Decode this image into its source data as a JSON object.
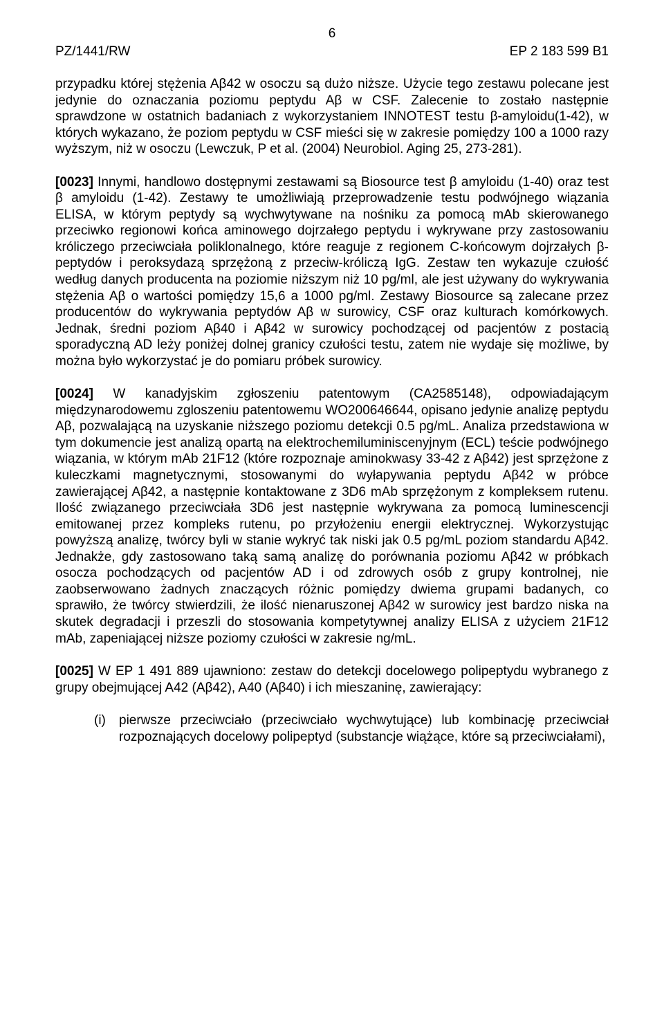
{
  "page_number": "6",
  "header_left": "PZ/1441/RW",
  "header_right": "EP 2 183 599 B1",
  "p1": "przypadku której stężenia Aβ42 w osoczu są dużo niższe. Użycie tego zestawu polecane jest jedynie do oznaczania poziomu peptydu Aβ w CSF. Zalecenie to zostało następnie sprawdzone w ostatnich badaniach z wykorzystaniem INNOTEST testu β-amyloidu(1-42), w których wykazano, że poziom peptydu w CSF mieści się w zakresie pomiędzy 100 a 1000 razy wyższym, niż w osoczu (Lewczuk, P et al. (2004) Neurobiol. Aging 25, 273-281).",
  "p2_label": "[0023]",
  "p2_body": " Innymi, handlowo dostępnymi zestawami są Biosource test β amyloidu (1-40) oraz test β amyloidu (1-42). Zestawy te umożliwiają przeprowadzenie testu podwójnego wiązania ELISA, w którym peptydy są wychwytywane na nośniku za pomocą mAb skierowanego przeciwko regionowi końca aminowego dojrzałego peptydu i wykrywane przy zastosowaniu króliczego przeciwciała poliklonalnego, które reaguje z regionem C-końcowym dojrzałych β-peptydów i peroksydazą sprzężoną z przeciw-króliczą IgG. Zestaw ten wykazuje czułość według danych producenta na poziomie niższym niż 10 pg/ml, ale jest używany do wykrywania stężenia Aβ o wartości pomiędzy 15,6 a 1000 pg/ml. Zestawy Biosource są zalecane przez producentów do wykrywania peptydów Aβ w surowicy, CSF oraz kulturach komórkowych. Jednak, średni poziom Aβ40 i Aβ42 w surowicy pochodzącej od pacjentów z postacią sporadyczną AD leży poniżej dolnej granicy czułości testu, zatem nie wydaje się możliwe, by można było wykorzystać je do pomiaru próbek surowicy.",
  "p3_label": "[0024]",
  "p3_body": " W kanadyjskim zgłoszeniu patentowym (CA2585148), odpowiadającym międzynarodowemu zgloszeniu patentowemu WO200646644, opisano jedynie analizę peptydu Aβ, pozwalającą na uzyskanie niższego poziomu detekcji 0.5 pg/mL. Analiza przedstawiona w tym dokumencie jest analizą opartą na elektrochemiluminiscenyjnym (ECL) teście podwójnego wiązania, w którym mAb 21F12 (które rozpoznaje aminokwasy 33-42 z Aβ42) jest sprzężone z kuleczkami magnetycznymi, stosowanymi do wyłapywania peptydu Aβ42 w próbce zawierającej Aβ42, a następnie kontaktowane z 3D6 mAb sprzężonym z kompleksem rutenu. Ilość związanego przeciwciała 3D6 jest następnie wykrywana za pomocą luminescencji emitowanej przez kompleks rutenu, po przyłożeniu energii elektrycznej. Wykorzystując powyższą analizę, twórcy byli w stanie wykryć tak niski jak 0.5 pg/mL poziom standardu Aβ42. Jednakże, gdy zastosowano taką samą analizę do porównania poziomu Aβ42 w próbkach osocza pochodzących od pacjentów AD i od zdrowych osób z grupy kontrolnej, nie zaobserwowano żadnych znaczących różnic pomiędzy dwiema grupami badanych, co sprawiło, że twórcy stwierdzili, że ilość nienaruszonej Aβ42 w surowicy jest bardzo niska na skutek degradacji i przeszli do stosowania kompetytywnej analizy ELISA z użyciem 21F12 mAb, zapeniającej niższe poziomy czułości w zakresie ng/mL.",
  "p4_label": "[0025]",
  "p4_body": " W EP 1 491 889 ujawniono: zestaw do detekcji docelowego polipeptydu wybranego z grupy obejmującej A42 (Aβ42), A40 (Aβ40) i ich mieszaninę, zawierający:",
  "list_marker": "(i)",
  "list_body": "pierwsze przeciwciało (przeciwciało wychwytujące) lub kombinację przeciwciał rozpoznających docelowy polipeptyd (substancje wiążące, które są przeciwciałami),"
}
